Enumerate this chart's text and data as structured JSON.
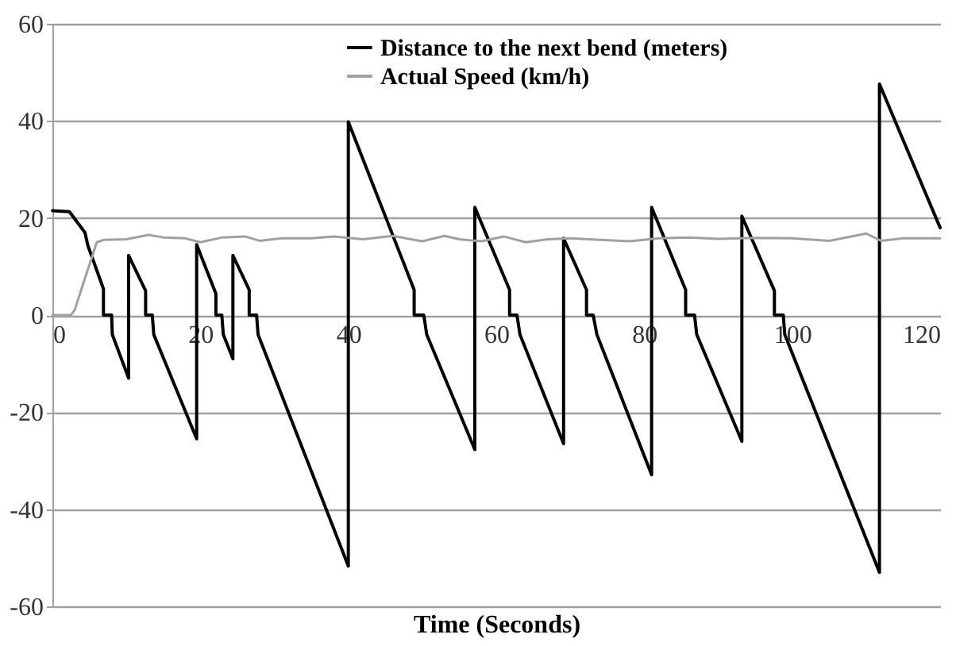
{
  "chart_data": {
    "type": "line",
    "xlabel": "Time (Seconds)",
    "xlim": [
      0,
      120
    ],
    "xticks": [
      0,
      20,
      40,
      60,
      80,
      100,
      120
    ],
    "ylim": [
      -60,
      60
    ],
    "yticks": [
      -60,
      -40,
      -20,
      0,
      20,
      40,
      60
    ],
    "grid": "y",
    "legend": "top",
    "marker": "none",
    "line_style": "solid",
    "series": [
      {
        "name": "Distance to the next bend (meters)",
        "color": "#000000",
        "x": [
          0,
          2.3,
          4.4,
          4.8,
          6.9,
          6.9,
          8.0,
          8.1,
          10.3,
          10.3,
          12.6,
          12.6,
          13.5,
          13.7,
          19.5,
          19.5,
          22.1,
          22.1,
          22.9,
          23.1,
          24.4,
          24.4,
          26.6,
          26.6,
          27.6,
          27.8,
          40,
          40,
          48.9,
          48.9,
          50.2,
          50.6,
          57.1,
          57.1,
          61.8,
          61.8,
          62.8,
          63.2,
          69.1,
          69.1,
          72.2,
          72.2,
          73.1,
          73.6,
          81.0,
          81.0,
          85.6,
          85.6,
          86.8,
          87.1,
          93.2,
          93.2,
          97.6,
          97.6,
          98.8,
          99.0,
          111.8,
          111.8,
          120
        ],
        "values": [
          21.5,
          21.3,
          17,
          14.3,
          5.4,
          0,
          0,
          -4,
          -13,
          12.3,
          5,
          0,
          0,
          -4,
          -25.5,
          14.5,
          4.4,
          0,
          0,
          -4,
          -9,
          12.3,
          5.2,
          0,
          0,
          -4,
          -51.7,
          39.8,
          5.2,
          0,
          0,
          -4,
          -27.7,
          22.2,
          5.2,
          0,
          0,
          -4,
          -26.5,
          15.8,
          5.2,
          0,
          0,
          -4,
          -32.9,
          22.2,
          5.2,
          0,
          0,
          -4,
          -26,
          20.4,
          5,
          0,
          0,
          -4,
          -53,
          47.6,
          18
        ]
      },
      {
        "name": "Actual Speed (km/h)",
        "color": "#a0a0a0",
        "x": [
          0,
          2.5,
          3,
          4.5,
          6,
          7,
          10,
          13,
          15,
          18,
          20,
          23,
          26,
          28,
          31,
          35,
          38,
          42,
          46,
          50,
          53,
          55,
          58,
          61,
          64,
          67,
          70,
          74,
          78,
          82,
          86,
          90,
          95,
          100,
          105,
          108,
          110,
          112,
          115,
          120
        ],
        "values": [
          0,
          0,
          1,
          8,
          15,
          15.5,
          15.6,
          16.5,
          16,
          15.8,
          15,
          16,
          16.2,
          15.3,
          15.8,
          15.8,
          16.2,
          15.6,
          16.3,
          15.2,
          16.3,
          15.6,
          15.2,
          16.2,
          15,
          15.6,
          15.8,
          15.5,
          15.2,
          15.8,
          16,
          15.7,
          15.9,
          15.8,
          15.3,
          16.2,
          16.8,
          15.3,
          15.8,
          15.8
        ]
      }
    ]
  }
}
